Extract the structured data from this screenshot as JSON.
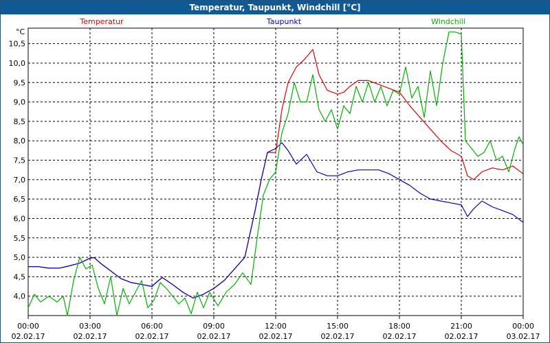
{
  "window": {
    "title": "Temperatur, Taupunkt, Windchill [°C]"
  },
  "chart_data": {
    "type": "line",
    "title": "Temperatur, Taupunkt, Windchill [°C]",
    "ylabel": "°C",
    "ylim": [
      3.5,
      10.9
    ],
    "xlim": [
      0,
      24
    ],
    "yticks": [
      4.0,
      4.5,
      5.0,
      5.5,
      6.0,
      6.5,
      7.0,
      7.5,
      8.0,
      8.5,
      9.0,
      9.5,
      10.0,
      10.5
    ],
    "ytick_labels": [
      "4,0",
      "4,5",
      "5,0",
      "5,5",
      "6,0",
      "6,5",
      "7,0",
      "7,5",
      "8,0",
      "8,5",
      "9,0",
      "9,5",
      "10,0",
      "10,5"
    ],
    "xticks": [
      0,
      3,
      6,
      9,
      12,
      15,
      18,
      21,
      24
    ],
    "xtick_time": [
      "00:00",
      "03:00",
      "06:00",
      "09:00",
      "12:00",
      "15:00",
      "18:00",
      "21:00",
      "00:00"
    ],
    "xtick_date": [
      "02.02.17",
      "02.02.17",
      "02.02.17",
      "02.02.17",
      "02.02.17",
      "02.02.17",
      "02.02.17",
      "02.02.17",
      "03.02.17"
    ],
    "grid": true,
    "legend_position": "top",
    "series": [
      {
        "name": "Temperatur",
        "color": "#e00000",
        "points": [
          [
            0,
            4.76
          ],
          [
            0.5,
            4.76
          ],
          [
            1,
            4.72
          ],
          [
            1.5,
            4.72
          ],
          [
            2,
            4.78
          ],
          [
            2.5,
            4.85
          ],
          [
            3,
            4.98
          ],
          [
            3.2,
            4.99
          ],
          [
            3.5,
            4.85
          ],
          [
            4,
            4.65
          ],
          [
            4.5,
            4.45
          ],
          [
            5,
            4.35
          ],
          [
            5.5,
            4.3
          ],
          [
            6,
            4.25
          ],
          [
            6.2,
            4.35
          ],
          [
            6.5,
            4.48
          ],
          [
            7,
            4.3
          ],
          [
            7.5,
            4.1
          ],
          [
            8,
            3.95
          ],
          [
            8.5,
            4.05
          ],
          [
            9,
            4.2
          ],
          [
            9.5,
            4.4
          ],
          [
            10,
            4.7
          ],
          [
            10.5,
            5.0
          ],
          [
            11,
            6.2
          ],
          [
            11.3,
            7.0
          ],
          [
            11.6,
            7.7
          ],
          [
            12,
            7.7
          ],
          [
            12.3,
            8.8
          ],
          [
            12.6,
            9.5
          ],
          [
            13,
            9.9
          ],
          [
            13.4,
            10.1
          ],
          [
            13.8,
            10.35
          ],
          [
            14.1,
            9.7
          ],
          [
            14.5,
            9.3
          ],
          [
            15,
            9.2
          ],
          [
            15.3,
            9.25
          ],
          [
            15.6,
            9.4
          ],
          [
            16,
            9.55
          ],
          [
            16.5,
            9.55
          ],
          [
            17,
            9.45
          ],
          [
            17.5,
            9.35
          ],
          [
            18,
            9.25
          ],
          [
            18.5,
            8.9
          ],
          [
            19,
            8.6
          ],
          [
            19.5,
            8.3
          ],
          [
            20,
            8.0
          ],
          [
            20.5,
            7.75
          ],
          [
            21,
            7.6
          ],
          [
            21.3,
            7.1
          ],
          [
            21.6,
            7.0
          ],
          [
            22,
            7.2
          ],
          [
            22.5,
            7.3
          ],
          [
            23,
            7.25
          ],
          [
            23.5,
            7.35
          ],
          [
            24,
            7.15
          ]
        ]
      },
      {
        "name": "Taupunkt",
        "color": "#0000c8",
        "points": [
          [
            0,
            4.76
          ],
          [
            0.5,
            4.76
          ],
          [
            1,
            4.72
          ],
          [
            1.5,
            4.72
          ],
          [
            2,
            4.78
          ],
          [
            2.5,
            4.85
          ],
          [
            3,
            4.98
          ],
          [
            3.2,
            4.99
          ],
          [
            3.5,
            4.85
          ],
          [
            4,
            4.65
          ],
          [
            4.5,
            4.45
          ],
          [
            5,
            4.35
          ],
          [
            5.5,
            4.3
          ],
          [
            6,
            4.25
          ],
          [
            6.2,
            4.35
          ],
          [
            6.5,
            4.48
          ],
          [
            7,
            4.3
          ],
          [
            7.5,
            4.1
          ],
          [
            8,
            3.95
          ],
          [
            8.5,
            4.05
          ],
          [
            9,
            4.2
          ],
          [
            9.5,
            4.4
          ],
          [
            10,
            4.7
          ],
          [
            10.5,
            5.0
          ],
          [
            11,
            6.2
          ],
          [
            11.3,
            7.0
          ],
          [
            11.6,
            7.7
          ],
          [
            12,
            7.8
          ],
          [
            12.3,
            7.95
          ],
          [
            12.6,
            7.75
          ],
          [
            13,
            7.4
          ],
          [
            13.5,
            7.65
          ],
          [
            14,
            7.2
          ],
          [
            14.5,
            7.1
          ],
          [
            15,
            7.1
          ],
          [
            15.5,
            7.2
          ],
          [
            16,
            7.25
          ],
          [
            16.5,
            7.25
          ],
          [
            17,
            7.25
          ],
          [
            17.5,
            7.15
          ],
          [
            18,
            7.0
          ],
          [
            18.5,
            6.85
          ],
          [
            19,
            6.65
          ],
          [
            19.5,
            6.5
          ],
          [
            20,
            6.45
          ],
          [
            20.5,
            6.4
          ],
          [
            21,
            6.35
          ],
          [
            21.3,
            6.05
          ],
          [
            21.6,
            6.25
          ],
          [
            22,
            6.45
          ],
          [
            22.5,
            6.3
          ],
          [
            23,
            6.2
          ],
          [
            23.5,
            6.1
          ],
          [
            24,
            5.9
          ]
        ]
      },
      {
        "name": "Windchill",
        "color": "#00b000",
        "points": [
          [
            0,
            3.7
          ],
          [
            0.3,
            4.05
          ],
          [
            0.6,
            3.85
          ],
          [
            1,
            4.0
          ],
          [
            1.4,
            3.85
          ],
          [
            1.7,
            4.0
          ],
          [
            1.9,
            3.5
          ],
          [
            2.2,
            4.4
          ],
          [
            2.5,
            5.0
          ],
          [
            2.8,
            4.7
          ],
          [
            3.1,
            4.8
          ],
          [
            3.4,
            4.2
          ],
          [
            3.7,
            3.8
          ],
          [
            4,
            4.5
          ],
          [
            4.3,
            3.5
          ],
          [
            4.6,
            4.2
          ],
          [
            4.9,
            3.8
          ],
          [
            5.2,
            4.1
          ],
          [
            5.5,
            4.4
          ],
          [
            5.8,
            3.7
          ],
          [
            6.1,
            3.9
          ],
          [
            6.4,
            4.35
          ],
          [
            6.7,
            4.2
          ],
          [
            7,
            4.0
          ],
          [
            7.3,
            3.8
          ],
          [
            7.6,
            3.95
          ],
          [
            7.9,
            3.55
          ],
          [
            8.2,
            4.1
          ],
          [
            8.5,
            3.7
          ],
          [
            8.8,
            4.1
          ],
          [
            9.2,
            3.75
          ],
          [
            9.6,
            4.1
          ],
          [
            10,
            4.3
          ],
          [
            10.4,
            4.6
          ],
          [
            10.8,
            4.3
          ],
          [
            11.1,
            5.5
          ],
          [
            11.4,
            6.6
          ],
          [
            11.7,
            7.0
          ],
          [
            12,
            7.2
          ],
          [
            12.3,
            8.2
          ],
          [
            12.6,
            8.7
          ],
          [
            12.9,
            9.5
          ],
          [
            13.2,
            9.0
          ],
          [
            13.5,
            9.0
          ],
          [
            13.8,
            9.7
          ],
          [
            14.1,
            8.8
          ],
          [
            14.4,
            8.5
          ],
          [
            14.7,
            8.8
          ],
          [
            15,
            8.3
          ],
          [
            15.3,
            8.9
          ],
          [
            15.6,
            8.7
          ],
          [
            15.9,
            9.4
          ],
          [
            16.2,
            9.0
          ],
          [
            16.5,
            9.5
          ],
          [
            16.8,
            9.0
          ],
          [
            17.1,
            9.4
          ],
          [
            17.4,
            8.9
          ],
          [
            17.7,
            9.3
          ],
          [
            18,
            9.2
          ],
          [
            18.3,
            9.9
          ],
          [
            18.6,
            9.1
          ],
          [
            18.9,
            9.4
          ],
          [
            19.2,
            8.6
          ],
          [
            19.5,
            9.8
          ],
          [
            19.8,
            8.9
          ],
          [
            20.1,
            10.0
          ],
          [
            20.4,
            10.8
          ],
          [
            20.7,
            10.8
          ],
          [
            21,
            10.75
          ],
          [
            21.2,
            8.0
          ],
          [
            21.5,
            7.8
          ],
          [
            21.8,
            7.6
          ],
          [
            22.1,
            7.7
          ],
          [
            22.4,
            8.0
          ],
          [
            22.7,
            7.5
          ],
          [
            23,
            7.6
          ],
          [
            23.3,
            7.2
          ],
          [
            23.6,
            7.8
          ],
          [
            23.8,
            8.1
          ],
          [
            24,
            7.9
          ]
        ]
      }
    ]
  }
}
